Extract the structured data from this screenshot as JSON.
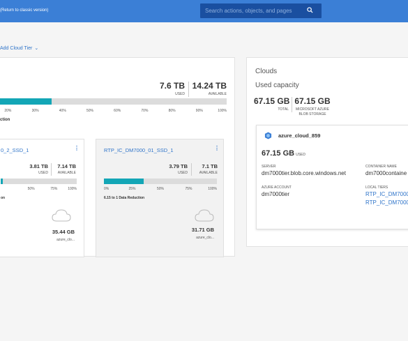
{
  "topbar": {
    "return_link": "(Return to classic version)",
    "search_placeholder": "Search actions, objects, and pages"
  },
  "add_cloud_tier": "Add Cloud Tier",
  "left_panel": {
    "used": {
      "value": "7.6 TB",
      "label": "USED"
    },
    "available": {
      "value": "14.24 TB",
      "label": "AVAILABLE"
    },
    "used_fraction": 0.35,
    "ticks": [
      "20%",
      "30%",
      "40%",
      "50%",
      "60%",
      "70%",
      "80%",
      "90%",
      "100%"
    ],
    "reduction_fragment": "ction",
    "cards": [
      {
        "title": "0_2_SSD_1",
        "used": {
          "value": "3.81 TB",
          "label": "USED"
        },
        "available": {
          "value": "7.14 TB",
          "label": "AVAILABLE"
        },
        "used_fraction": 0.35,
        "ticks": [
          "50%",
          "75%",
          "100%"
        ],
        "reduction": "on",
        "cloud_size": "35.44 GB",
        "cloud_name": "azure_clo..."
      },
      {
        "title": "RTP_IC_DM7000_01_SSD_1",
        "used": {
          "value": "3.79 TB",
          "label": "USED"
        },
        "available": {
          "value": "7.1 TB",
          "label": "AVAILABLE"
        },
        "used_fraction": 0.35,
        "ticks": [
          "0%",
          "25%",
          "50%",
          "75%",
          "100%"
        ],
        "reduction": "6.15 to 1 Data Reduction",
        "cloud_size": "31.71 GB",
        "cloud_name": "azure_clo..."
      }
    ]
  },
  "right_panel": {
    "title": "Clouds",
    "subtitle": "Used capacity",
    "total": {
      "value": "67.15 GB",
      "label": "TOTAL"
    },
    "azure": {
      "value": "67.15 GB",
      "label_line1": "MICROSOFT AZURE",
      "label_line2": "BLOB STORAGE"
    },
    "card": {
      "name": "azure_cloud_859",
      "capacity": "67.15 GB",
      "capacity_unit": "USED",
      "server_label": "SERVER",
      "server": "dm7000tier.blob.core.windows.net",
      "container_label": "CONTAINER NAME",
      "container": "dm7000containe",
      "account_label": "AZURE ACCOUNT",
      "account": "dm7000tier",
      "tiers_label": "LOCAL TIERS",
      "tiers": [
        "RTP_IC_DM7000",
        "RTP_IC_DM7000"
      ]
    }
  },
  "colors": {
    "accent": "#3b7fd6",
    "bar": "#13a6b6",
    "link": "#2f74c9"
  }
}
